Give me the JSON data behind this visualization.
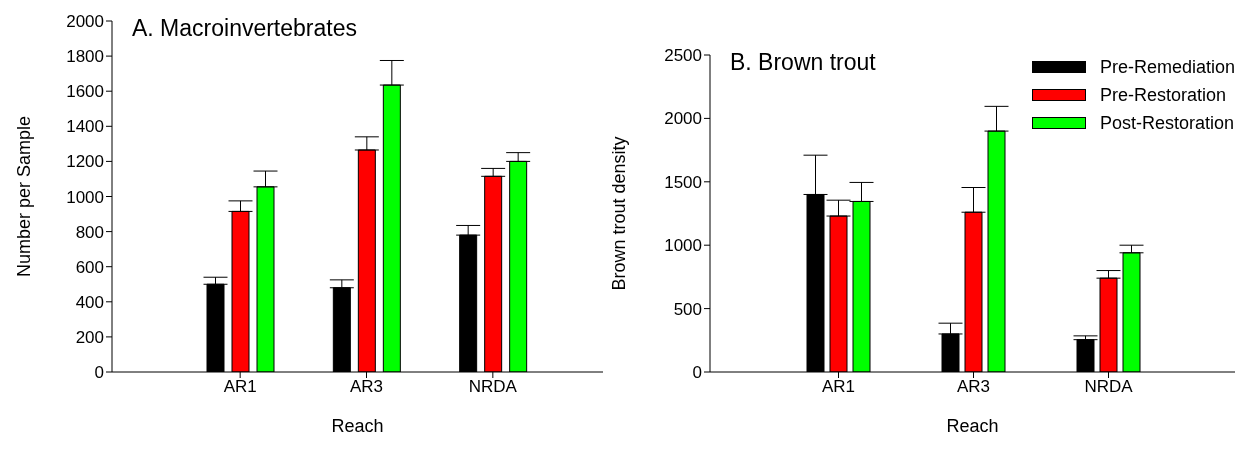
{
  "chart_data": [
    {
      "type": "bar",
      "title": "A. Macroinvertebrates",
      "xlabel": "Reach",
      "ylabel": "Number per Sample",
      "categories": [
        "AR1",
        "AR3",
        "NRDA"
      ],
      "ylim": [
        0,
        2000
      ],
      "yticks": [
        0,
        200,
        400,
        600,
        800,
        1000,
        1200,
        1400,
        1600,
        1800,
        2000
      ],
      "series": [
        {
          "color": "#000000",
          "values": [
            500,
            480,
            780
          ],
          "errors": [
            [
              500,
              540
            ],
            [
              480,
              525
            ],
            [
              780,
              835
            ]
          ]
        },
        {
          "color": "#ff0000",
          "values": [
            915,
            1265,
            1115
          ],
          "errors": [
            [
              915,
              975
            ],
            [
              1265,
              1340
            ],
            [
              1115,
              1160
            ]
          ]
        },
        {
          "color": "#00ff00",
          "values": [
            1055,
            1635,
            1200
          ],
          "errors": [
            [
              1055,
              1145
            ],
            [
              1635,
              1775
            ],
            [
              1200,
              1250
            ]
          ]
        }
      ]
    },
    {
      "type": "bar",
      "title": "B. Brown trout",
      "xlabel": "Reach",
      "ylabel": "Brown trout density",
      "categories": [
        "AR1",
        "AR3",
        "NRDA"
      ],
      "ylim": [
        0,
        2500
      ],
      "yticks": [
        0,
        500,
        1000,
        1500,
        2000,
        2500
      ],
      "legend": "top right",
      "series": [
        {
          "name": "Pre-Remediation",
          "color": "#000000",
          "values": [
            1400,
            300,
            255
          ],
          "errors": [
            [
              1400,
              1710
            ],
            [
              300,
              385
            ],
            [
              255,
              285
            ]
          ]
        },
        {
          "name": "Pre-Restoration",
          "color": "#ff0000",
          "values": [
            1230,
            1260,
            740
          ],
          "errors": [
            [
              1230,
              1355
            ],
            [
              1260,
              1455
            ],
            [
              740,
              800
            ]
          ]
        },
        {
          "name": "Post-Restoration",
          "color": "#00ff00",
          "values": [
            1345,
            1900,
            940
          ],
          "errors": [
            [
              1345,
              1495
            ],
            [
              1900,
              2095
            ],
            [
              940,
              1000
            ]
          ]
        }
      ]
    }
  ]
}
